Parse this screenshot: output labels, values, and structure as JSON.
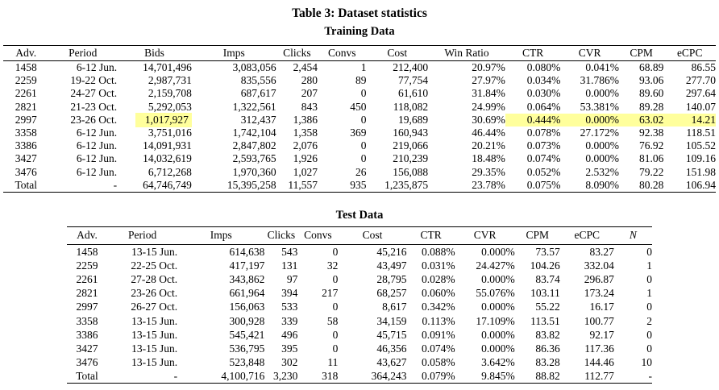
{
  "caption": "Table 3: Dataset statistics",
  "highlight_color": "#ffff9c",
  "training": {
    "heading": "Training Data",
    "columns": [
      "Adv.",
      "Period",
      "Bids",
      "Imps",
      "Clicks",
      "Convs",
      "Cost",
      "Win Ratio",
      "CTR",
      "CVR",
      "CPM",
      "eCPC"
    ],
    "rows": [
      [
        "1458",
        "6-12 Jun.",
        "14,701,496",
        "3,083,056",
        "2,454",
        "1",
        "212,400",
        "20.97%",
        "0.080%",
        "0.041%",
        "68.89",
        "86.55"
      ],
      [
        "2259",
        "19-22 Oct.",
        "2,987,731",
        "835,556",
        "280",
        "89",
        "77,754",
        "27.97%",
        "0.034%",
        "31.786%",
        "93.06",
        "277.70"
      ],
      [
        "2261",
        "24-27 Oct.",
        "2,159,708",
        "687,617",
        "207",
        "0",
        "61,610",
        "31.84%",
        "0.030%",
        "0.000%",
        "89.60",
        "297.64"
      ],
      [
        "2821",
        "21-23 Oct.",
        "5,292,053",
        "1,322,561",
        "843",
        "450",
        "118,082",
        "24.99%",
        "0.064%",
        "53.381%",
        "89.28",
        "140.07"
      ],
      {
        "cells": [
          "2997",
          "23-26 Oct.",
          "1,017,927",
          "312,437",
          "1,386",
          "0",
          "19,689",
          "30.69%",
          "0.444%",
          "0.000%",
          "63.02",
          "14.21"
        ],
        "hl_span": [
          2
        ],
        "hl_cells": [
          8,
          9,
          10,
          11
        ]
      },
      [
        "3358",
        "6-12 Jun.",
        "3,751,016",
        "1,742,104",
        "1,358",
        "369",
        "160,943",
        "46.44%",
        "0.078%",
        "27.172%",
        "92.38",
        "118.51"
      ],
      [
        "3386",
        "6-12 Jun.",
        "14,091,931",
        "2,847,802",
        "2,076",
        "0",
        "219,066",
        "20.21%",
        "0.073%",
        "0.000%",
        "76.92",
        "105.52"
      ],
      [
        "3427",
        "6-12 Jun.",
        "14,032,619",
        "2,593,765",
        "1,926",
        "0",
        "210,239",
        "18.48%",
        "0.074%",
        "0.000%",
        "81.06",
        "109.16"
      ],
      [
        "3476",
        "6-12 Jun.",
        "6,712,268",
        "1,970,360",
        "1,027",
        "26",
        "156,088",
        "29.35%",
        "0.052%",
        "2.532%",
        "79.22",
        "151.98"
      ],
      [
        "Total",
        "-",
        "64,746,749",
        "15,395,258",
        "11,557",
        "935",
        "1,235,875",
        "23.78%",
        "0.075%",
        "8.090%",
        "80.28",
        "106.94"
      ]
    ]
  },
  "test": {
    "heading": "Test Data",
    "columns": [
      "Adv.",
      "Period",
      "Imps",
      "Clicks",
      "Convs",
      "Cost",
      "CTR",
      "CVR",
      "CPM",
      "eCPC",
      "N"
    ],
    "rows": [
      [
        "1458",
        "13-15 Jun.",
        "614,638",
        "543",
        "0",
        "45,216",
        "0.088%",
        "0.000%",
        "73.57",
        "83.27",
        "0"
      ],
      [
        "2259",
        "22-25 Oct.",
        "417,197",
        "131",
        "32",
        "43,497",
        "0.031%",
        "24.427%",
        "104.26",
        "332.04",
        "1"
      ],
      [
        "2261",
        "27-28 Oct.",
        "343,862",
        "97",
        "0",
        "28,795",
        "0.028%",
        "0.000%",
        "83.74",
        "296.87",
        "0"
      ],
      [
        "2821",
        "23-26 Oct.",
        "661,964",
        "394",
        "217",
        "68,257",
        "0.060%",
        "55.076%",
        "103.11",
        "173.24",
        "1"
      ],
      [
        "2997",
        "26-27 Oct.",
        "156,063",
        "533",
        "0",
        "8,617",
        "0.342%",
        "0.000%",
        "55.22",
        "16.17",
        "0"
      ],
      [
        "3358",
        "13-15 Jun.",
        "300,928",
        "339",
        "58",
        "34,159",
        "0.113%",
        "17.109%",
        "113.51",
        "100.77",
        "2"
      ],
      [
        "3386",
        "13-15 Jun.",
        "545,421",
        "496",
        "0",
        "45,715",
        "0.091%",
        "0.000%",
        "83.82",
        "92.17",
        "0"
      ],
      [
        "3427",
        "13-15 Jun.",
        "536,795",
        "395",
        "0",
        "46,356",
        "0.074%",
        "0.000%",
        "86.36",
        "117.36",
        "0"
      ],
      [
        "3476",
        "13-15 Jun.",
        "523,848",
        "302",
        "11",
        "43,627",
        "0.058%",
        "3.642%",
        "83.28",
        "144.46",
        "10"
      ],
      [
        "Total",
        "-",
        "4,100,716",
        "3,230",
        "318",
        "364,243",
        "0.079%",
        "9.845%",
        "88.82",
        "112.77",
        "-"
      ]
    ]
  }
}
